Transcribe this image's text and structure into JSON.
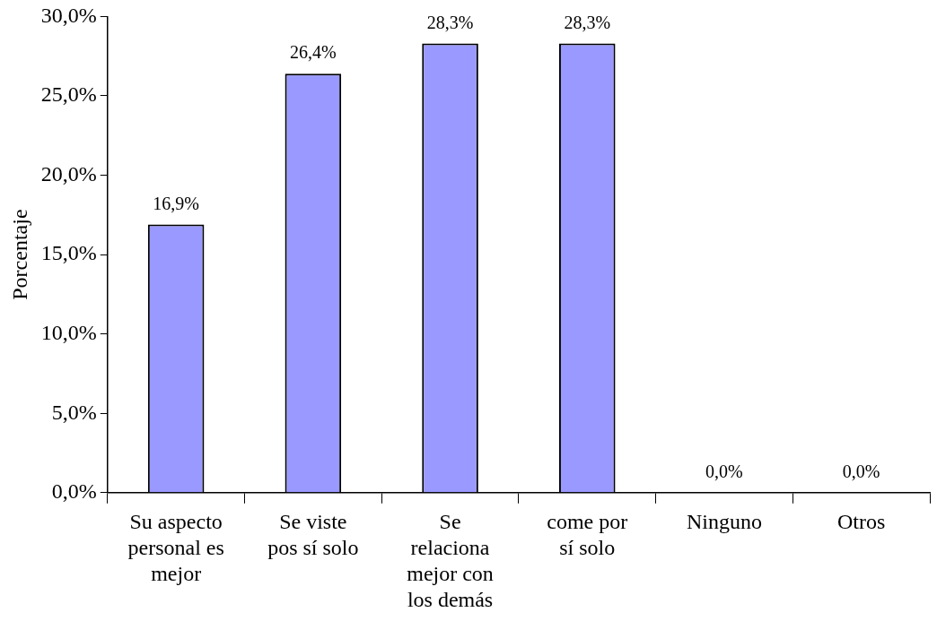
{
  "chart_data": {
    "type": "bar",
    "ylabel": "Porcentaje",
    "categories": [
      "Su aspecto personal es mejor",
      "Se viste pos sí solo",
      "Se relaciona mejor con los demás",
      "come por sí solo",
      "Ninguno",
      "Otros"
    ],
    "values": [
      16.9,
      26.4,
      28.3,
      28.3,
      0,
      0
    ],
    "value_labels": [
      "16,9%",
      "26,4%",
      "28,3%",
      "28,3%",
      "0,0%",
      "0,0%"
    ],
    "color": "#9999ff",
    "ylim": [
      0,
      30
    ],
    "yticks": [
      {
        "value": 0,
        "label": "0,0%"
      },
      {
        "value": 5,
        "label": "5,0%"
      },
      {
        "value": 10,
        "label": "10,0%"
      },
      {
        "value": 15,
        "label": "15,0%"
      },
      {
        "value": 20,
        "label": "20,0%"
      },
      {
        "value": 25,
        "label": "25,0%"
      },
      {
        "value": 30,
        "label": "30,0%"
      }
    ],
    "grid": false,
    "legend": false
  }
}
